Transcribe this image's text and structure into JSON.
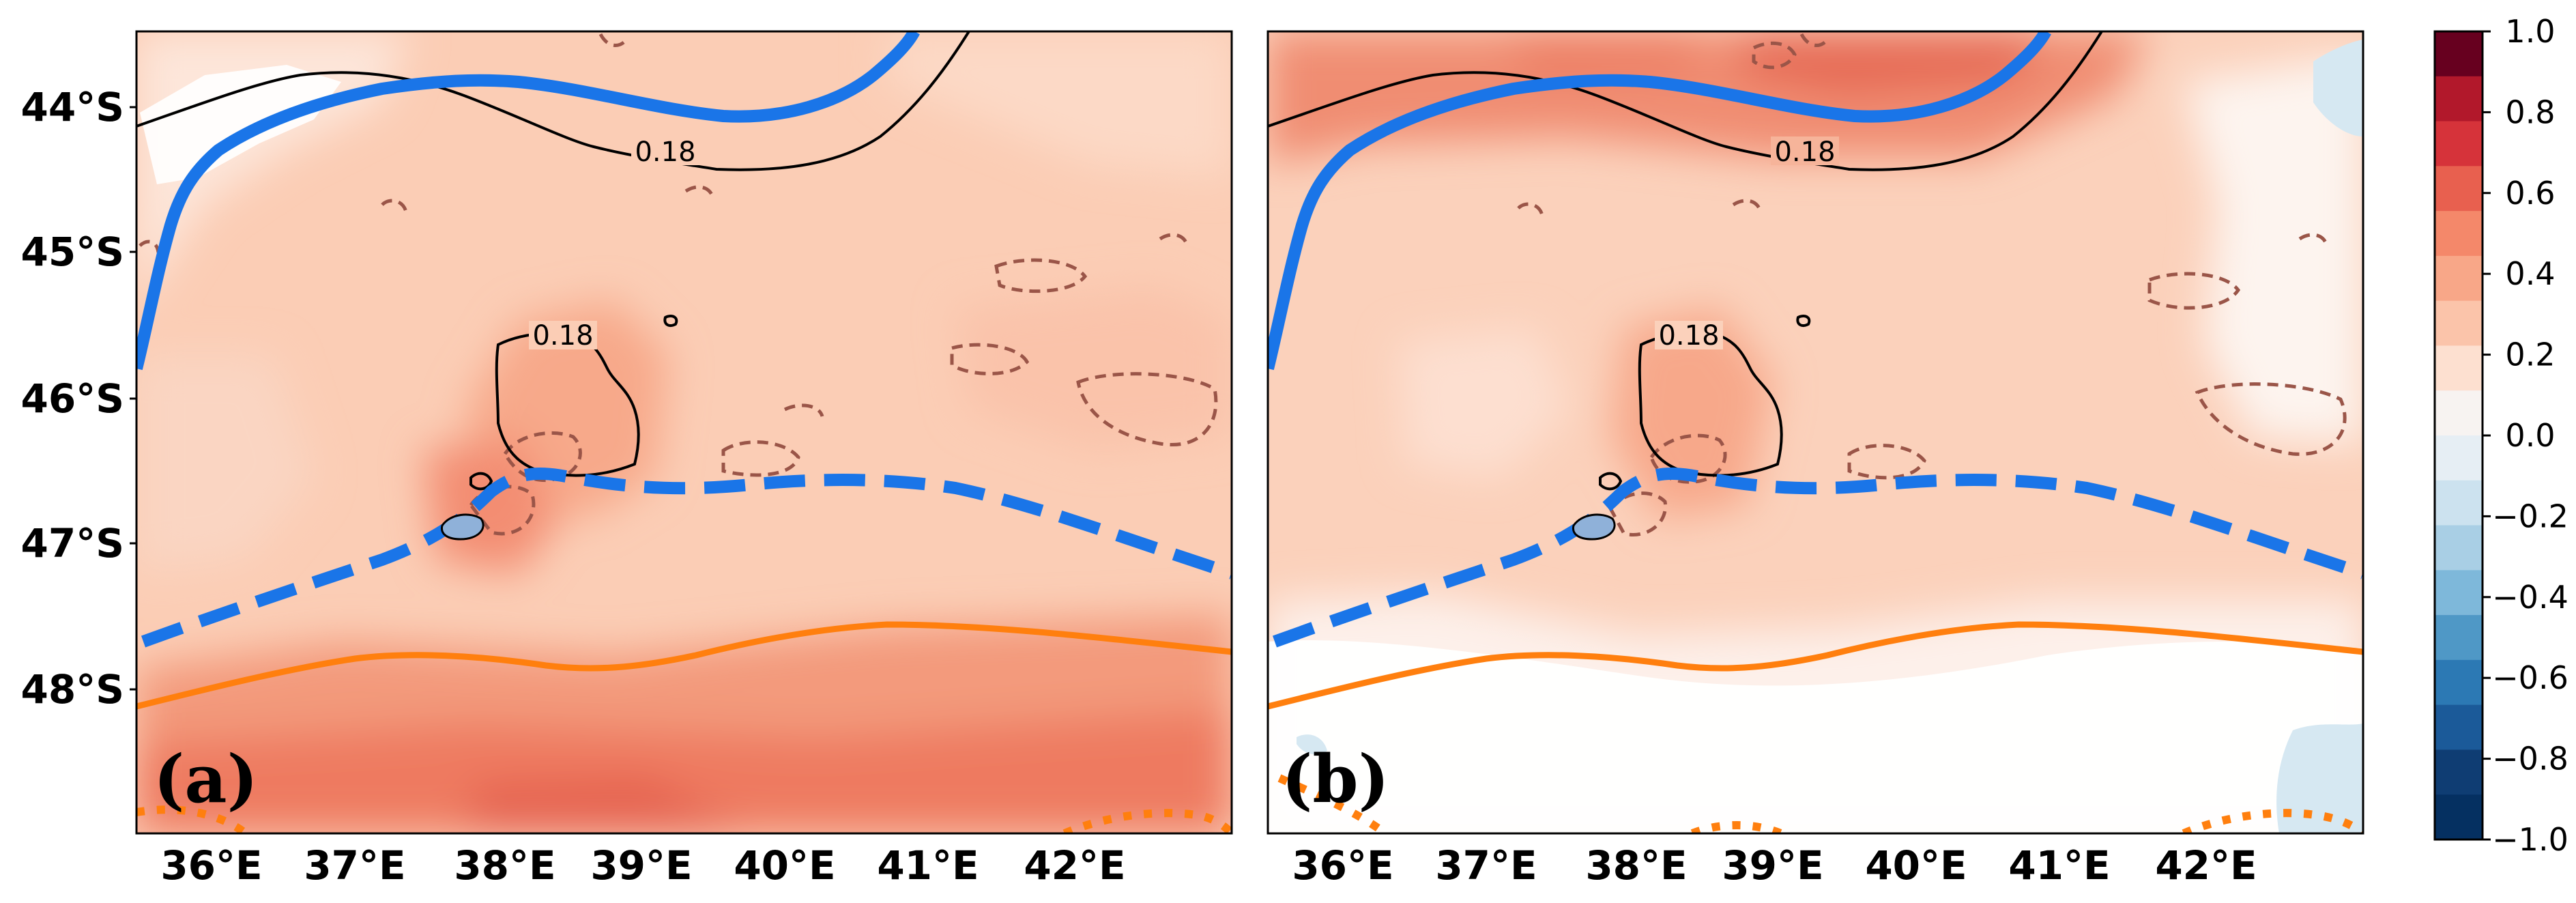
{
  "panels": [
    {
      "label": "(a)",
      "contour_labels": [
        "0.18",
        "0.18"
      ]
    },
    {
      "label": "(b)",
      "contour_labels": [
        "0.18",
        "0.18"
      ]
    }
  ],
  "lat_ticks": [
    "44°S",
    "45°S",
    "46°S",
    "47°S",
    "48°S"
  ],
  "lon_ticks": [
    "36°E",
    "37°E",
    "38°E",
    "39°E",
    "40°E",
    "41°E",
    "42°E"
  ],
  "colorbar": {
    "tick_labels": [
      "1.0",
      "0.8",
      "0.6",
      "0.4",
      "0.2",
      "0.0",
      "−0.2",
      "−0.4",
      "−0.6",
      "−0.8",
      "−1.0"
    ],
    "colors": [
      "#67001f",
      "#b2182b",
      "#d6333a",
      "#e8604f",
      "#f4886a",
      "#f8a788",
      "#fbc4aa",
      "#fde0d0",
      "#f7f3f1",
      "#e6eef4",
      "#cce2ef",
      "#a9cfe5",
      "#7eb8da",
      "#4f98c6",
      "#2c79b4",
      "#1b5a99",
      "#0f3d73",
      "#053061"
    ],
    "range": [
      -1.0,
      1.0
    ]
  },
  "legend_colors": {
    "front_blue": "#1a75e8",
    "front_orange": "#ff7f0e",
    "contour_black": "#000000",
    "contour_brown": "#9a5548",
    "island": "#8fb1d9"
  }
}
